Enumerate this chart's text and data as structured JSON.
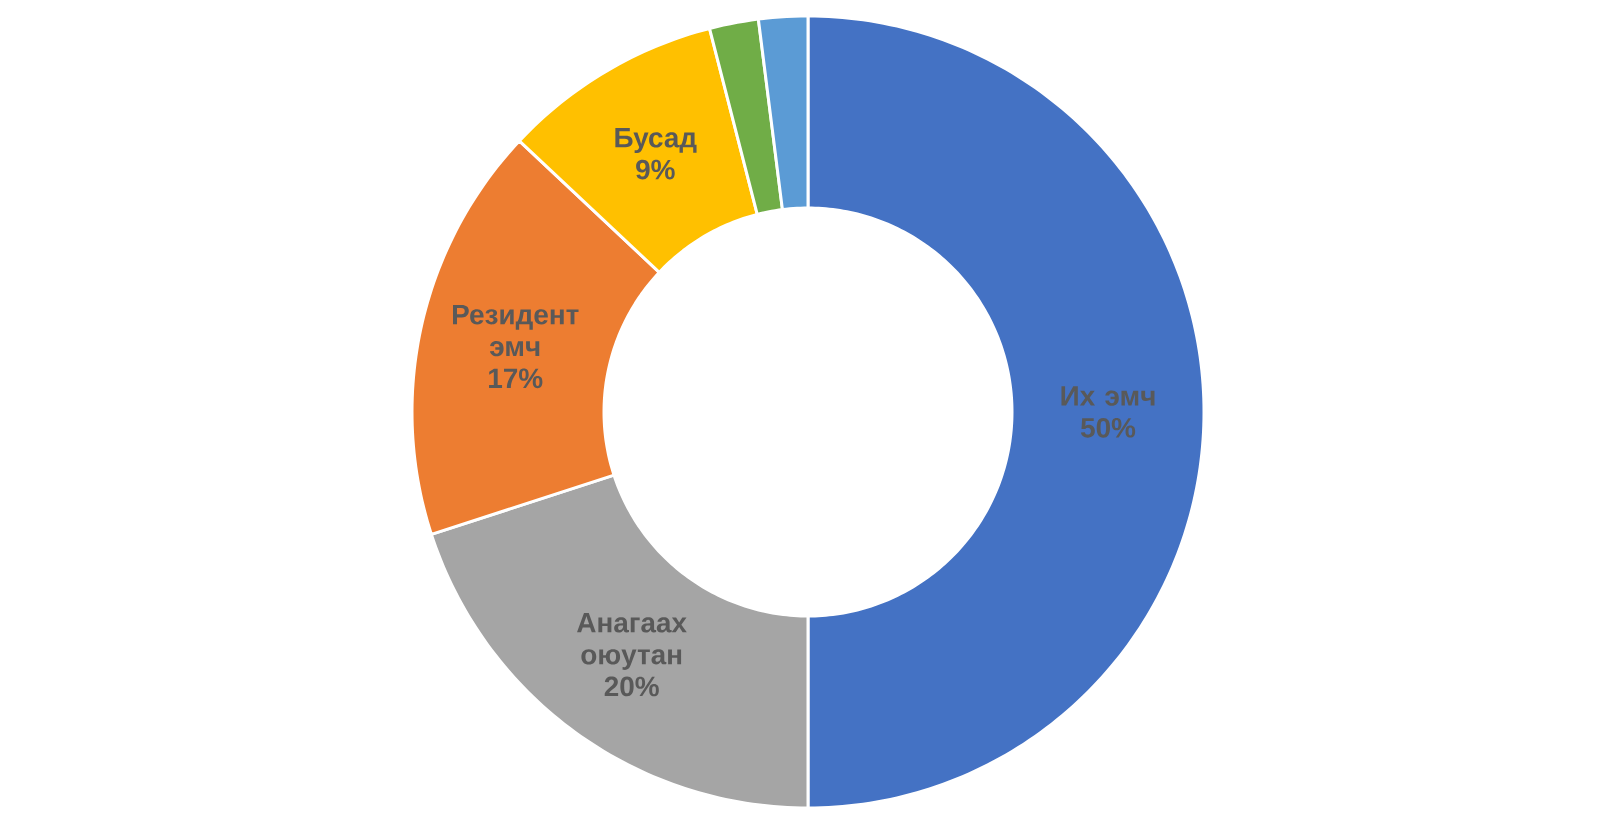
{
  "chart_data": {
    "type": "donut",
    "categories": [
      "Их эмч",
      "Анагаах оюутан",
      "Резидент эмч",
      "Бусад",
      null,
      null
    ],
    "values": [
      50,
      20,
      17,
      9,
      2,
      2
    ],
    "value_labels": [
      "50%",
      "20%",
      "17%",
      "9%",
      null,
      null
    ],
    "colors": [
      "#4472c4",
      "#a5a5a5",
      "#ed7d31",
      "#ffc000",
      "#70ad47",
      "#5b9bd5"
    ]
  }
}
